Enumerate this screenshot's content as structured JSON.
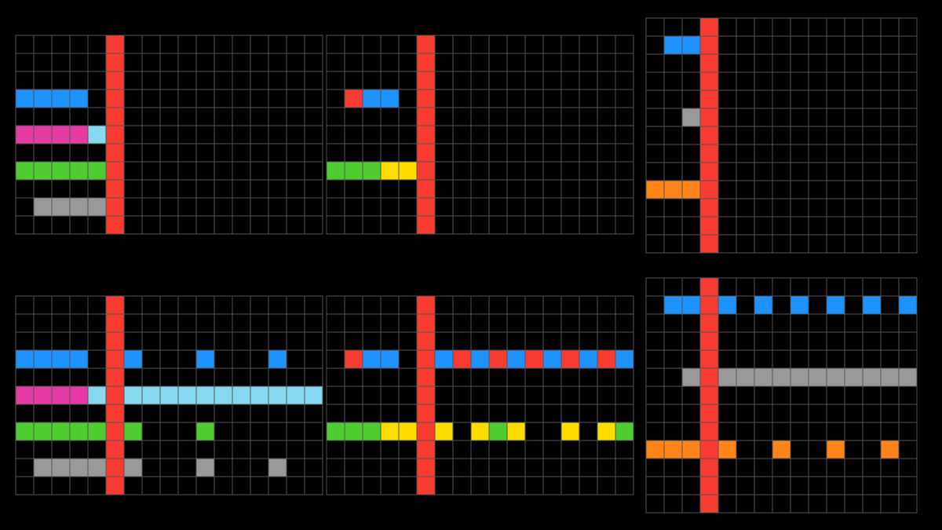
{
  "palette": {
    "0": "#000000",
    "1": "#1E93FF",
    "2": "#F93C31",
    "3": "#4FCC30",
    "4": "#FFDC00",
    "5": "#999999",
    "6": "#E53AA3",
    "7": "#FF851B",
    "8": "#87D8F1",
    "9": "#921231"
  },
  "grid_line_color": "#555555",
  "panels": [
    {
      "id": "example-1-input",
      "rows": [
        "00000200000000000",
        "00000200000000000",
        "00000200000000000",
        "11110200000000000",
        "00000200000000000",
        "66668200000000000",
        "00000200000000000",
        "33333200000000000",
        "00000200000000000",
        "05555200000000000",
        "00000200000000000"
      ]
    },
    {
      "id": "example-2-input",
      "rows": [
        "00000200000000000",
        "00000200000000000",
        "00000200000000000",
        "02110200000000000",
        "00000200000000000",
        "00000200000000000",
        "00000200000000000",
        "33344200000000000",
        "00000200000000000",
        "00000200000000000",
        "00000200000000000"
      ]
    },
    {
      "id": "test-input",
      "rows": [
        "000200000000000",
        "011200000000000",
        "000200000000000",
        "000200000000000",
        "000200000000000",
        "005200000000000",
        "000200000000000",
        "000200000000000",
        "000200000000000",
        "777200000000000",
        "000200000000000",
        "000200000000000",
        "000200000000000"
      ]
    },
    {
      "id": "example-1-output",
      "rows": [
        "00000200000000000",
        "00000200000000000",
        "00000200000000000",
        "11110210001000100",
        "00000200000000000",
        "66668288888888888",
        "00000200000000000",
        "33333230003000000",
        "00000200000000000",
        "05555250005000500",
        "00000200000000000"
      ]
    },
    {
      "id": "example-2-output",
      "rows": [
        "00000200000000000",
        "00000200000000000",
        "00000200000000000",
        "02110212121212121",
        "00000200000000000",
        "00000200000000000",
        "00000200000000000",
        "33344240434004043",
        "00000200000000000",
        "00000200000000000",
        "00000200000000000"
      ]
    },
    {
      "id": "test-output",
      "rows": [
        "000200000000000",
        "011210101010101",
        "000200000000000",
        "000200000000000",
        "000200000000000",
        "005255555555555",
        "000200000000000",
        "000200000000000",
        "000200000000000",
        "777270070070070",
        "000200000000000",
        "000200000000000",
        "000200000000000"
      ]
    }
  ]
}
